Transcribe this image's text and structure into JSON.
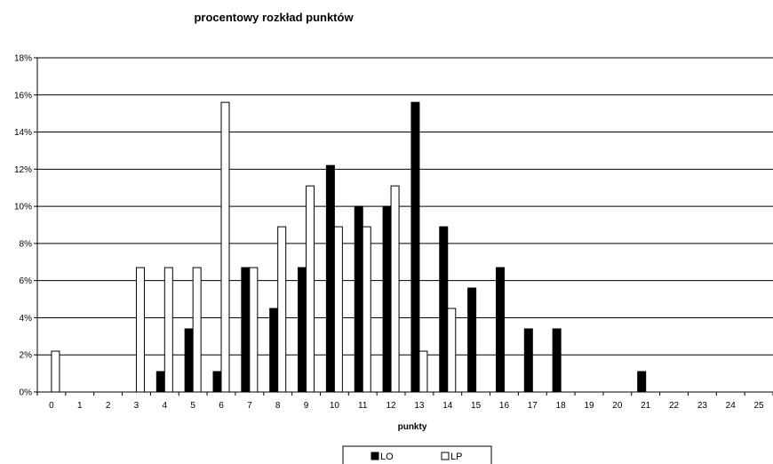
{
  "chart_data": {
    "type": "bar",
    "title": "procentowy rozkład punktów",
    "xlabel": "punkty",
    "ylabel": "",
    "ylim": [
      0,
      18
    ],
    "y_tick_values": [
      0,
      2,
      4,
      6,
      8,
      10,
      12,
      14,
      16,
      18
    ],
    "y_tick_labels": [
      "0%",
      "2%",
      "4%",
      "6%",
      "8%",
      "10%",
      "12%",
      "14%",
      "16%",
      "18%"
    ],
    "categories": [
      "0",
      "1",
      "2",
      "3",
      "4",
      "5",
      "6",
      "7",
      "8",
      "9",
      "10",
      "11",
      "12",
      "13",
      "14",
      "15",
      "16",
      "17",
      "18",
      "19",
      "20",
      "21",
      "22",
      "23",
      "24",
      "25"
    ],
    "grid": "horizontal",
    "legend_position": "bottom",
    "series": [
      {
        "name": "LO",
        "color": "#000000",
        "values": [
          0,
          0,
          0,
          0,
          1.1,
          3.4,
          1.1,
          6.7,
          4.5,
          6.7,
          12.2,
          10.0,
          10.0,
          15.6,
          8.9,
          5.6,
          6.7,
          3.4,
          3.4,
          0,
          0,
          1.1,
          0,
          0,
          0,
          0
        ]
      },
      {
        "name": "LP",
        "color": "#ffffff",
        "values": [
          2.2,
          0,
          0,
          6.7,
          6.7,
          6.7,
          15.6,
          6.7,
          8.9,
          11.1,
          8.9,
          8.9,
          11.1,
          2.2,
          4.5,
          0,
          0,
          0,
          0,
          0,
          0,
          0,
          0,
          0,
          0,
          0
        ]
      }
    ]
  }
}
